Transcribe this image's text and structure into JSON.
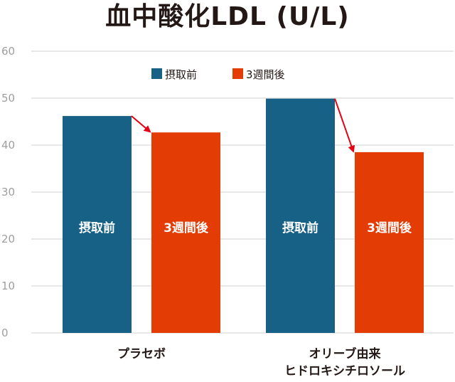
{
  "chart_data": {
    "type": "bar",
    "title": "血中酸化LDL (U/L)",
    "xlabel": "",
    "ylabel": "",
    "ylim": [
      0,
      60
    ],
    "yticks": [
      0,
      10,
      20,
      30,
      40,
      50,
      60
    ],
    "grid": true,
    "legend_position": "top-right",
    "categories": [
      "プラセボ",
      [
        "オリーブ由来",
        "ヒドロキシチロソール"
      ]
    ],
    "series": [
      {
        "name": "摂取前",
        "color": "#176086",
        "values": [
          46.2,
          49.9
        ],
        "bar_label": "摂取前"
      },
      {
        "name": "3週間後",
        "color": "#e33c04",
        "values": [
          42.7,
          38.5
        ],
        "bar_label": "3週間後"
      }
    ],
    "arrows": [
      {
        "from": "摂取前",
        "to": "3週間後",
        "category_index": 0
      },
      {
        "from": "摂取前",
        "to": "3週間後",
        "category_index": 1
      }
    ],
    "arrow_color": "#e60012"
  }
}
